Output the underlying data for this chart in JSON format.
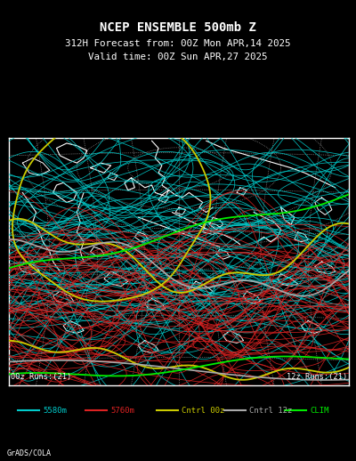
{
  "title_line1": "NCEP ENSEMBLE 500mb Z",
  "title_line2": "312H Forecast from: 00Z Mon APR,14 2025",
  "title_line3": "Valid time: 00Z Sun APR,27 2025",
  "bg_color": "#000000",
  "map_bg": "#000000",
  "border_color": "#ffffff",
  "text_color": "#ffffff",
  "runs_left": "00z Runs:(21)",
  "runs_right": "12z Runs:(21)",
  "legend_items": [
    {
      "label": "5580m",
      "color": "#00cccc"
    },
    {
      "label": "5760m",
      "color": "#dd2222"
    },
    {
      "label": "Cntrl 00z",
      "color": "#cccc00"
    },
    {
      "label": "Cntrl 12z",
      "color": "#aaaaaa"
    },
    {
      "label": "CLIM",
      "color": "#00ee00"
    }
  ],
  "credit": "GrADS/COLA",
  "seed": 42,
  "n_cyan_lines": 80,
  "n_red_lines": 65
}
